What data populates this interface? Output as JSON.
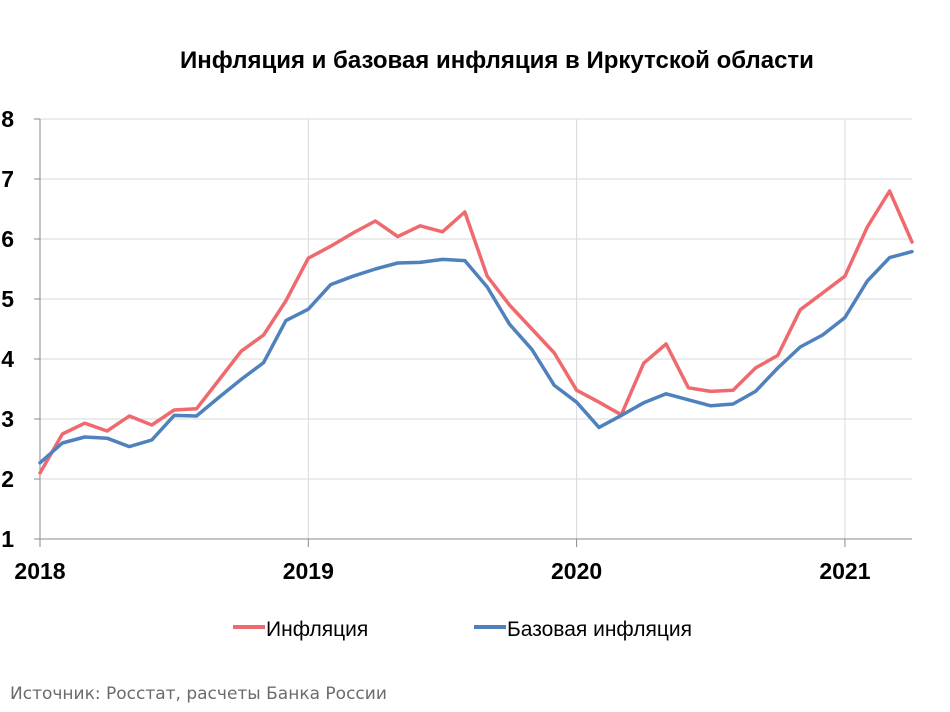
{
  "chart_data": {
    "type": "line",
    "title": "Инфляция и базовая инфляция в Иркутской области",
    "xlabel": "",
    "ylabel": "",
    "xlim": [
      "2018-01",
      "2021-04"
    ],
    "ylim": [
      1,
      8
    ],
    "y_ticks": [
      1,
      2,
      3,
      4,
      5,
      6,
      7,
      8
    ],
    "x_ticks": [
      "2018",
      "2019",
      "2020",
      "2021"
    ],
    "grid": true,
    "legend_position": "bottom",
    "x": [
      "2018-01",
      "2018-02",
      "2018-03",
      "2018-04",
      "2018-05",
      "2018-06",
      "2018-07",
      "2018-08",
      "2018-09",
      "2018-10",
      "2018-11",
      "2018-12",
      "2019-01",
      "2019-02",
      "2019-03",
      "2019-04",
      "2019-05",
      "2019-06",
      "2019-07",
      "2019-08",
      "2019-09",
      "2019-10",
      "2019-11",
      "2019-12",
      "2020-01",
      "2020-02",
      "2020-03",
      "2020-04",
      "2020-05",
      "2020-06",
      "2020-07",
      "2020-08",
      "2020-09",
      "2020-10",
      "2020-11",
      "2020-12",
      "2021-01",
      "2021-02",
      "2021-03",
      "2021-04"
    ],
    "series": [
      {
        "name": "Инфляция",
        "color": "#ee6a6e",
        "values": [
          2.1,
          2.75,
          2.93,
          2.8,
          3.05,
          2.9,
          3.15,
          3.17,
          3.65,
          4.13,
          4.4,
          4.97,
          5.68,
          5.88,
          6.1,
          6.3,
          6.04,
          6.22,
          6.12,
          6.45,
          5.38,
          4.9,
          4.5,
          4.1,
          3.48,
          3.28,
          3.07,
          3.93,
          4.25,
          3.52,
          3.46,
          3.48,
          3.85,
          4.06,
          4.82,
          5.1,
          5.38,
          6.2,
          6.8,
          5.95
        ]
      },
      {
        "name": "Базовая инфляция",
        "color": "#4f81bd",
        "values": [
          2.27,
          2.6,
          2.7,
          2.68,
          2.54,
          2.65,
          3.06,
          3.05,
          3.36,
          3.66,
          3.94,
          4.64,
          4.83,
          5.24,
          5.38,
          5.5,
          5.6,
          5.61,
          5.66,
          5.64,
          5.2,
          4.58,
          4.16,
          3.56,
          3.28,
          2.86,
          3.06,
          3.27,
          3.42,
          3.32,
          3.22,
          3.25,
          3.46,
          3.85,
          4.2,
          4.4,
          4.69,
          5.3,
          5.69,
          5.79
        ]
      }
    ]
  },
  "source_note": "Источник: Росстат, расчеты Банка России"
}
